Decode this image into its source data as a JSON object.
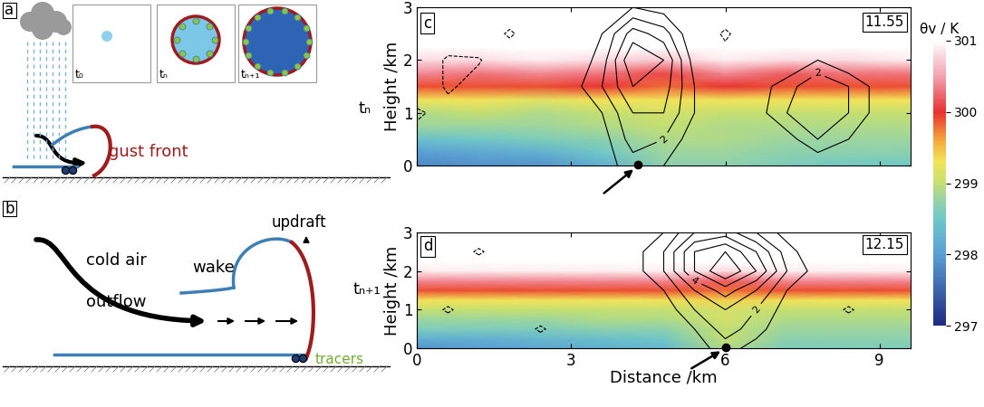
{
  "schematic": {
    "a": {
      "label": "a",
      "gust_front": "gust front",
      "insets": [
        "t₀",
        "tₙ",
        "tₙ₊₁"
      ],
      "time": "tₙ"
    },
    "b": {
      "label": "b",
      "cold_air": "cold air",
      "outflow": "outflow",
      "wake": "wake",
      "updraft": "updraft",
      "tracers": "tracers",
      "time": "tₙ₊₁"
    }
  },
  "colorbar": {
    "label": "θv / K",
    "range": [
      297,
      301
    ],
    "ticks": [
      297,
      298,
      299,
      300,
      301
    ]
  },
  "chart_data": [
    {
      "type": "contour",
      "label": "c",
      "time": "11.55",
      "tick_labels": "y",
      "ylabel": "Height /km",
      "xlim": [
        0,
        9.6
      ],
      "ylim": [
        0,
        3
      ],
      "xticks": [
        0,
        3,
        6,
        9
      ],
      "yticks": [
        0,
        1,
        2,
        3
      ],
      "tracer_x": 4.3,
      "theta_x": [
        0,
        1.2,
        2.4,
        3.6,
        4.8,
        6.0,
        7.2,
        8.4,
        9.6
      ],
      "theta_z": [
        0,
        0.25,
        0.5,
        0.75,
        1.0,
        1.25,
        1.5,
        1.75,
        2.0,
        2.25,
        2.5,
        2.75,
        3.0
      ],
      "theta_v": [
        [
          297.8,
          297.9,
          297.9,
          298.2,
          298.7,
          298.7,
          298.6,
          298.5,
          298.5
        ],
        [
          298.0,
          298.1,
          298.2,
          298.5,
          298.8,
          298.8,
          298.7,
          298.7,
          298.7
        ],
        [
          298.4,
          298.5,
          298.6,
          298.7,
          298.9,
          298.9,
          298.8,
          298.8,
          298.8
        ],
        [
          298.8,
          298.8,
          298.8,
          298.9,
          299.0,
          298.9,
          298.9,
          298.9,
          298.9
        ],
        [
          298.9,
          299.0,
          298.9,
          299.0,
          299.1,
          299.0,
          299.0,
          299.0,
          299.0
        ],
        [
          299.3,
          299.3,
          299.2,
          299.3,
          299.3,
          299.3,
          299.3,
          299.3,
          299.3
        ],
        [
          299.9,
          299.9,
          299.9,
          300.0,
          299.8,
          300.0,
          299.9,
          299.9,
          299.9
        ],
        [
          300.4,
          300.3,
          300.4,
          300.3,
          300.1,
          300.4,
          300.2,
          300.3,
          300.3
        ],
        [
          300.8,
          300.8,
          300.9,
          300.8,
          300.7,
          300.9,
          300.8,
          300.8,
          300.9
        ],
        [
          301.2,
          301.2,
          301.2,
          301.2,
          301.2,
          301.2,
          301.2,
          301.2,
          301.2
        ],
        [
          301.3,
          301.3,
          301.3,
          301.3,
          301.3,
          301.3,
          301.3,
          301.3,
          301.3
        ],
        [
          301.3,
          301.3,
          301.3,
          301.3,
          301.3,
          301.3,
          301.3,
          301.3,
          301.3
        ],
        [
          301.4,
          301.4,
          301.4,
          301.4,
          301.4,
          301.4,
          301.4,
          301.4,
          301.4
        ]
      ],
      "w_x": [
        0,
        0.6,
        1.2,
        1.8,
        2.4,
        3.0,
        3.6,
        4.2,
        4.8,
        5.4,
        6.0,
        6.6,
        7.2,
        7.8,
        8.4,
        9.0,
        9.6
      ],
      "w_z": [
        0,
        0.5,
        1.0,
        1.5,
        2.0,
        2.5,
        3.0
      ],
      "w": [
        [
          0,
          0,
          0,
          0,
          0,
          0,
          0.5,
          1.5,
          1,
          0,
          0,
          0,
          0,
          0,
          0,
          0,
          0
        ],
        [
          -0.5,
          -0.8,
          0,
          0,
          0,
          0,
          0.5,
          2.5,
          2,
          0.3,
          0,
          0,
          0.5,
          2,
          1,
          0,
          0
        ],
        [
          -1.2,
          -0.5,
          0,
          0,
          0,
          0.3,
          1,
          3,
          3,
          1,
          0,
          0.5,
          2,
          2.5,
          2,
          0.5,
          0
        ],
        [
          0,
          -1.2,
          -0.5,
          0,
          0,
          0.5,
          2,
          4,
          3.5,
          1,
          0,
          0.5,
          1.5,
          3,
          2,
          0.5,
          0
        ],
        [
          0,
          -1.2,
          -1.1,
          0,
          0,
          0,
          1.5,
          5,
          4,
          0.5,
          -0.5,
          0,
          0,
          1,
          0,
          0,
          0
        ],
        [
          0,
          0,
          0,
          -1.2,
          0,
          0,
          1,
          3.5,
          2.5,
          0,
          -1.2,
          0,
          0,
          0,
          0,
          0,
          -0.5
        ],
        [
          0,
          0,
          0,
          0,
          0,
          0,
          0,
          1,
          0.5,
          0,
          0,
          0,
          0,
          0,
          0,
          0,
          0
        ]
      ],
      "contour_levels": [
        -1,
        1,
        2,
        3,
        4,
        5,
        6
      ],
      "labeled_levels": [
        2
      ]
    },
    {
      "type": "contour",
      "label": "d",
      "time": "12.15",
      "tick_labels": true,
      "ylabel": "Height /km",
      "xlabel": "Distance /km",
      "xlim": [
        0,
        9.6
      ],
      "ylim": [
        0,
        3
      ],
      "xticks": [
        0,
        3,
        6,
        9
      ],
      "yticks": [
        0,
        1,
        2,
        3
      ],
      "tracer_x": 6.0,
      "theta_x": [
        0,
        1.2,
        2.4,
        3.6,
        4.8,
        6.0,
        7.2,
        8.4,
        9.6
      ],
      "theta_z": [
        0,
        0.25,
        0.5,
        0.75,
        1.0,
        1.25,
        1.5,
        1.75,
        2.0,
        2.25,
        2.5,
        2.75,
        3.0
      ],
      "theta_v": [
        [
          297.9,
          298.0,
          298.1,
          298.2,
          298.3,
          298.9,
          298.6,
          298.6,
          298.6
        ],
        [
          298.2,
          298.2,
          298.3,
          298.4,
          298.5,
          299.0,
          298.7,
          298.7,
          298.7
        ],
        [
          298.6,
          298.6,
          298.6,
          298.7,
          298.7,
          299.0,
          298.8,
          298.8,
          298.8
        ],
        [
          298.8,
          298.8,
          298.8,
          298.9,
          298.9,
          299.1,
          298.9,
          298.9,
          298.9
        ],
        [
          299.0,
          299.0,
          299.0,
          299.0,
          299.0,
          299.1,
          299.0,
          299.0,
          299.0
        ],
        [
          299.3,
          299.3,
          299.3,
          299.3,
          299.3,
          299.4,
          299.3,
          299.3,
          299.3
        ],
        [
          299.9,
          299.9,
          299.9,
          299.9,
          299.9,
          299.8,
          299.9,
          299.9,
          299.9
        ],
        [
          300.4,
          300.4,
          300.4,
          300.4,
          300.4,
          300.2,
          300.4,
          300.4,
          300.4
        ],
        [
          300.9,
          300.9,
          300.9,
          300.9,
          300.9,
          300.8,
          300.9,
          300.9,
          300.9
        ],
        [
          301.2,
          301.2,
          301.2,
          301.2,
          301.2,
          301.2,
          301.2,
          301.2,
          301.2
        ],
        [
          301.3,
          301.3,
          301.3,
          301.3,
          301.3,
          301.3,
          301.3,
          301.3,
          301.3
        ],
        [
          301.3,
          301.3,
          301.3,
          301.3,
          301.3,
          301.3,
          301.3,
          301.3,
          301.3
        ],
        [
          301.4,
          301.4,
          301.4,
          301.4,
          301.4,
          301.4,
          301.4,
          301.4,
          301.4
        ]
      ],
      "w_x": [
        0,
        0.6,
        1.2,
        1.8,
        2.4,
        3.0,
        3.6,
        4.2,
        4.8,
        5.4,
        6.0,
        6.6,
        7.2,
        7.8,
        8.4,
        9.0,
        9.6
      ],
      "w_z": [
        0,
        0.5,
        1.0,
        1.5,
        2.0,
        2.5,
        3.0
      ],
      "w": [
        [
          0,
          0,
          0,
          0,
          0,
          0,
          0,
          0,
          0,
          0.5,
          1.5,
          0.5,
          0,
          0,
          0,
          0,
          0
        ],
        [
          0,
          0,
          0,
          0,
          -1.2,
          0,
          0,
          0,
          0,
          1,
          2.5,
          1.5,
          0,
          0,
          0,
          0,
          0
        ],
        [
          0,
          -1.2,
          0,
          0,
          0,
          0,
          0,
          0,
          0.3,
          2,
          3,
          2,
          0.5,
          0,
          -1.2,
          0,
          0
        ],
        [
          0,
          0,
          0,
          0,
          0,
          0,
          0,
          0,
          1,
          3,
          4.5,
          3,
          1,
          0,
          0,
          0,
          0
        ],
        [
          0,
          0,
          0,
          0,
          0,
          0,
          0,
          0.5,
          2,
          5,
          7,
          5,
          2,
          0.5,
          0,
          0,
          0
        ],
        [
          0,
          0,
          -1.2,
          0,
          0,
          0,
          0,
          0.5,
          2,
          5,
          6,
          4,
          1.5,
          0,
          0,
          0,
          0
        ],
        [
          0,
          0,
          0,
          0,
          0,
          0,
          0,
          0,
          1,
          3,
          3.5,
          2,
          0.5,
          0,
          0,
          0,
          0
        ]
      ],
      "contour_levels": [
        -1,
        1,
        2,
        3,
        4,
        5,
        6
      ],
      "labeled_levels": [
        2,
        4
      ]
    }
  ]
}
